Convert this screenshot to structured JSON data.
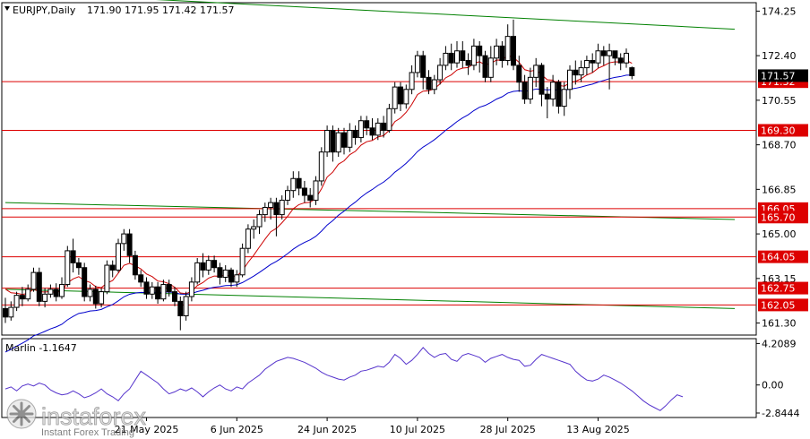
{
  "header": {
    "symbol": "EURJPY,Daily",
    "ohlc": "171.90 171.95 171.42 171.57"
  },
  "watermark": {
    "brand": "instaforex",
    "tagline": "Instant Forex Trading"
  },
  "colors": {
    "bull_candle": "#ffffff",
    "bear_candle": "#000000",
    "ma_fast": "#cc0000",
    "ma_slow": "#0000cc",
    "support_resistance": "#dd0000",
    "trend_channel": "#008000",
    "oscillator": "#5533cc",
    "price_tag_current": "#000000",
    "price_tag_level": "#dd0000"
  },
  "chart_data": [
    {
      "type": "candlestick",
      "title": "EURJPY,Daily",
      "ohlc_last": {
        "open": 171.9,
        "high": 171.95,
        "low": 171.42,
        "close": 171.57
      },
      "ylim": [
        160.8,
        174.6
      ],
      "y_ticks": [
        "174.25",
        "172.40",
        "170.55",
        "168.70",
        "166.85",
        "165.00",
        "163.15",
        "161.30"
      ],
      "x_ticks": [
        "21 May 2025",
        "6 Jun 2025",
        "24 Jun 2025",
        "10 Jul 2025",
        "28 Jul 2025",
        "13 Aug 2025"
      ],
      "x_tick_index": [
        25,
        41,
        57,
        73,
        89,
        105
      ],
      "current_price_tag": "171.57",
      "levels": [
        {
          "label": "171.32",
          "value": 171.32
        },
        {
          "label": "169.30",
          "value": 169.3
        },
        {
          "label": "166.05",
          "value": 166.05
        },
        {
          "label": "165.70",
          "value": 165.7
        },
        {
          "label": "164.05",
          "value": 164.05
        },
        {
          "label": "162.75",
          "value": 162.75
        },
        {
          "label": "162.05",
          "value": 162.05
        }
      ],
      "trend_lines": [
        {
          "from": [
            0,
            175.05
          ],
          "to": [
            119,
            173.5
          ]
        },
        {
          "from": [
            0,
            166.3
          ],
          "to": [
            119,
            165.6
          ]
        },
        {
          "from": [
            0,
            162.7
          ],
          "to": [
            119,
            161.9
          ]
        }
      ],
      "candles": [
        [
          161.9,
          161.55,
          161.3,
          162.35
        ],
        [
          161.55,
          161.95,
          161.4,
          162.2
        ],
        [
          161.95,
          162.45,
          161.8,
          162.6
        ],
        [
          162.45,
          162.3,
          162.0,
          162.8
        ],
        [
          162.3,
          162.7,
          162.2,
          162.9
        ],
        [
          162.7,
          163.4,
          162.6,
          163.6
        ],
        [
          163.4,
          162.2,
          162.0,
          163.6
        ],
        [
          162.2,
          162.5,
          161.95,
          162.75
        ],
        [
          162.5,
          162.7,
          162.35,
          162.9
        ],
        [
          162.7,
          162.4,
          162.2,
          162.95
        ],
        [
          162.4,
          162.9,
          162.3,
          163.2
        ],
        [
          162.9,
          164.3,
          162.8,
          164.5
        ],
        [
          164.3,
          163.8,
          163.4,
          164.8
        ],
        [
          163.8,
          163.6,
          163.3,
          164.0
        ],
        [
          163.6,
          162.4,
          162.2,
          163.8
        ],
        [
          162.4,
          162.7,
          162.2,
          162.9
        ],
        [
          162.7,
          162.1,
          161.9,
          162.85
        ],
        [
          162.1,
          162.6,
          161.95,
          162.75
        ],
        [
          162.6,
          163.7,
          162.5,
          163.9
        ],
        [
          163.7,
          163.5,
          163.2,
          163.9
        ],
        [
          163.5,
          164.6,
          163.4,
          164.8
        ],
        [
          164.6,
          165.0,
          164.3,
          165.2
        ],
        [
          165.0,
          164.1,
          163.8,
          165.2
        ],
        [
          164.1,
          163.3,
          163.1,
          164.3
        ],
        [
          163.3,
          163.0,
          162.8,
          163.5
        ],
        [
          163.0,
          162.5,
          162.3,
          163.2
        ],
        [
          162.5,
          162.8,
          162.3,
          163.0
        ],
        [
          162.8,
          162.3,
          162.1,
          163.0
        ],
        [
          162.3,
          162.9,
          162.2,
          163.1
        ],
        [
          162.9,
          162.6,
          162.4,
          163.1
        ],
        [
          162.6,
          162.2,
          162.0,
          162.8
        ],
        [
          162.2,
          161.6,
          161.0,
          162.4
        ],
        [
          161.6,
          162.4,
          161.4,
          162.6
        ],
        [
          162.4,
          163.0,
          162.2,
          163.2
        ],
        [
          163.0,
          163.8,
          162.9,
          164.0
        ],
        [
          163.8,
          163.5,
          163.2,
          164.2
        ],
        [
          163.5,
          163.9,
          163.3,
          164.1
        ],
        [
          163.9,
          163.6,
          163.4,
          164.1
        ],
        [
          163.6,
          163.2,
          162.9,
          163.8
        ],
        [
          163.2,
          163.5,
          163.0,
          163.7
        ],
        [
          163.5,
          163.0,
          162.8,
          163.6
        ],
        [
          163.0,
          163.3,
          162.8,
          163.5
        ],
        [
          163.3,
          164.4,
          163.2,
          164.6
        ],
        [
          164.4,
          165.2,
          164.2,
          165.4
        ],
        [
          165.2,
          165.3,
          164.8,
          165.6
        ],
        [
          165.3,
          165.8,
          165.0,
          166.0
        ],
        [
          165.8,
          166.1,
          165.5,
          166.3
        ],
        [
          166.1,
          166.3,
          165.6,
          166.5
        ],
        [
          166.3,
          165.8,
          164.9,
          166.5
        ],
        [
          165.8,
          166.4,
          165.6,
          166.6
        ],
        [
          166.4,
          166.8,
          166.2,
          167.0
        ],
        [
          166.8,
          167.3,
          166.5,
          167.6
        ],
        [
          167.3,
          166.9,
          166.6,
          167.6
        ],
        [
          166.9,
          166.6,
          166.3,
          167.2
        ],
        [
          166.6,
          166.4,
          166.1,
          166.9
        ],
        [
          166.4,
          167.2,
          166.2,
          167.4
        ],
        [
          167.2,
          168.4,
          167.0,
          168.6
        ],
        [
          168.4,
          169.3,
          168.2,
          169.5
        ],
        [
          169.3,
          168.4,
          168.0,
          169.5
        ],
        [
          168.4,
          169.2,
          168.2,
          169.4
        ],
        [
          169.2,
          168.6,
          168.3,
          169.4
        ],
        [
          168.6,
          169.3,
          168.4,
          169.6
        ],
        [
          169.3,
          169.0,
          168.7,
          169.5
        ],
        [
          169.0,
          169.7,
          168.8,
          169.9
        ],
        [
          169.7,
          169.4,
          169.1,
          169.9
        ],
        [
          169.4,
          169.1,
          168.9,
          169.8
        ],
        [
          169.1,
          169.6,
          168.9,
          169.8
        ],
        [
          169.6,
          169.3,
          169.0,
          169.9
        ],
        [
          169.3,
          170.2,
          169.2,
          170.4
        ],
        [
          170.2,
          171.1,
          170.0,
          171.3
        ],
        [
          171.1,
          170.4,
          170.1,
          171.3
        ],
        [
          170.4,
          171.0,
          170.2,
          171.2
        ],
        [
          171.0,
          171.7,
          170.8,
          172.0
        ],
        [
          171.7,
          172.4,
          171.5,
          172.6
        ],
        [
          172.4,
          171.5,
          171.0,
          172.6
        ],
        [
          171.5,
          171.0,
          170.8,
          171.8
        ],
        [
          171.0,
          171.4,
          170.8,
          171.6
        ],
        [
          171.4,
          172.0,
          171.2,
          172.3
        ],
        [
          172.0,
          172.5,
          171.8,
          172.8
        ],
        [
          172.5,
          172.1,
          171.8,
          172.9
        ],
        [
          172.1,
          172.6,
          171.9,
          173.0
        ],
        [
          172.6,
          172.2,
          171.9,
          173.0
        ],
        [
          172.2,
          172.0,
          171.6,
          172.5
        ],
        [
          172.0,
          172.8,
          171.8,
          173.1
        ],
        [
          172.8,
          172.4,
          171.7,
          173.0
        ],
        [
          172.4,
          171.5,
          171.3,
          172.6
        ],
        [
          171.5,
          172.3,
          171.3,
          172.8
        ],
        [
          172.3,
          172.8,
          172.0,
          173.1
        ],
        [
          172.8,
          172.2,
          171.9,
          173.0
        ],
        [
          172.2,
          173.2,
          172.0,
          173.7
        ],
        [
          173.2,
          172.0,
          171.8,
          173.9
        ],
        [
          172.0,
          171.3,
          170.9,
          172.4
        ],
        [
          171.3,
          170.6,
          170.4,
          171.6
        ],
        [
          170.6,
          171.5,
          170.4,
          171.9
        ],
        [
          171.5,
          172.0,
          171.1,
          172.3
        ],
        [
          172.0,
          170.8,
          170.3,
          172.1
        ],
        [
          170.8,
          170.6,
          169.8,
          171.1
        ],
        [
          170.6,
          171.3,
          170.3,
          171.6
        ],
        [
          171.3,
          170.3,
          170.0,
          171.4
        ],
        [
          170.3,
          171.0,
          169.9,
          171.3
        ],
        [
          171.0,
          171.8,
          170.6,
          172.0
        ],
        [
          171.8,
          171.6,
          171.2,
          172.2
        ],
        [
          171.6,
          171.9,
          171.3,
          172.2
        ],
        [
          171.9,
          172.2,
          171.6,
          172.4
        ],
        [
          172.2,
          172.1,
          171.7,
          172.5
        ],
        [
          172.1,
          172.6,
          171.9,
          172.9
        ],
        [
          172.6,
          172.4,
          172.0,
          172.8
        ],
        [
          172.4,
          172.6,
          171.0,
          172.9
        ],
        [
          172.6,
          172.3,
          172.0,
          172.6
        ],
        [
          172.3,
          172.1,
          171.8,
          172.5
        ],
        [
          172.1,
          172.5,
          171.9,
          172.7
        ],
        [
          171.9,
          171.57,
          171.42,
          171.95
        ]
      ]
    },
    {
      "type": "line",
      "title": "Marlin -1.1647",
      "ylim": [
        -3.3,
        4.7
      ],
      "y_ticks": [
        "4.2089",
        "0.00",
        "-2.8444"
      ],
      "series": [
        {
          "name": "Marlin",
          "values": [
            -0.4,
            -0.2,
            -0.6,
            -0.1,
            0.1,
            -0.1,
            0.2,
            0.0,
            -0.5,
            -0.8,
            -1.0,
            -0.9,
            -0.6,
            -0.9,
            -1.3,
            -1.1,
            -0.8,
            -0.4,
            -0.9,
            -1.2,
            -1.6,
            -0.9,
            -0.4,
            0.5,
            1.4,
            1.0,
            0.6,
            0.2,
            -0.4,
            -0.9,
            -0.7,
            -0.4,
            -0.6,
            -0.3,
            -0.7,
            -1.2,
            -0.7,
            -0.3,
            0.0,
            -0.4,
            -0.6,
            -0.2,
            -0.4,
            0.2,
            0.6,
            1.0,
            1.6,
            2.0,
            2.4,
            2.6,
            2.8,
            2.7,
            2.5,
            2.3,
            2.0,
            1.7,
            1.3,
            1.0,
            0.8,
            0.6,
            0.5,
            0.8,
            1.0,
            1.4,
            1.5,
            1.7,
            1.9,
            1.8,
            2.3,
            3.1,
            2.7,
            2.1,
            2.5,
            3.1,
            3.8,
            3.2,
            2.8,
            3.1,
            3.2,
            2.6,
            2.4,
            3.0,
            3.2,
            3.0,
            2.8,
            2.3,
            2.7,
            2.9,
            3.1,
            2.8,
            2.6,
            2.5,
            1.9,
            2.0,
            2.6,
            3.1,
            2.9,
            2.7,
            2.5,
            2.3,
            2.1,
            1.4,
            0.9,
            0.5,
            0.4,
            0.6,
            1.0,
            0.8,
            0.5,
            0.2,
            -0.2,
            -0.6,
            -1.1,
            -1.6,
            -2.0,
            -2.3,
            -2.6,
            -2.1,
            -1.5,
            -1.0,
            -1.2
          ]
        }
      ]
    }
  ]
}
